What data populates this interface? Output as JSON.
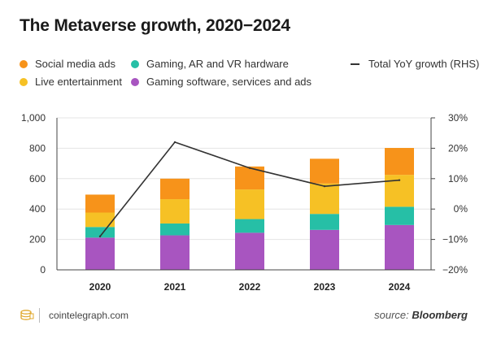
{
  "header": {
    "title": "The Metaverse growth, 2020−2024"
  },
  "legend": {
    "items": [
      {
        "label": "Social media ads",
        "color": "#f7931a"
      },
      {
        "label": "Gaming, AR and VR hardware",
        "color": "#26bfa6"
      },
      {
        "label": "Live entertainment",
        "color": "#f6c125"
      },
      {
        "label": "Gaming software, services and ads",
        "color": "#a855c0"
      },
      {
        "label": "Total YoY growth (RHS)",
        "color": "#333333"
      }
    ]
  },
  "footer": {
    "site": "cointelegraph.com",
    "source_prefix": "source: ",
    "source_name": "Bloomberg"
  },
  "chart_data": {
    "type": "bar",
    "stacked": true,
    "categories": [
      "2020",
      "2021",
      "2022",
      "2023",
      "2024"
    ],
    "series": [
      {
        "name": "Gaming software, services and ads",
        "color": "#a855c0",
        "values": [
          212,
          227,
          244,
          263,
          295
        ]
      },
      {
        "name": "Gaming, AR and VR hardware",
        "color": "#26bfa6",
        "values": [
          70,
          78,
          90,
          105,
          120
        ]
      },
      {
        "name": "Live entertainment",
        "color": "#f6c125",
        "values": [
          95,
          160,
          195,
          200,
          210
        ]
      },
      {
        "name": "Social media ads",
        "color": "#f7931a",
        "values": [
          118,
          135,
          151,
          163,
          177
        ]
      }
    ],
    "line_series": {
      "name": "Total YoY growth (RHS)",
      "color": "#333333",
      "axis": "right",
      "values": [
        -9,
        22,
        13.5,
        7.5,
        9.5
      ]
    },
    "yleft": {
      "ylim": [
        0,
        1000
      ],
      "ticks": [
        "0",
        "200",
        "400",
        "600",
        "800",
        "1,000"
      ]
    },
    "yright": {
      "ylim": [
        -20,
        30
      ],
      "ticks": [
        "−20%",
        "−10%",
        "0%",
        "10%",
        "20%",
        "30%"
      ]
    },
    "grid": true,
    "legend_position": "top"
  }
}
